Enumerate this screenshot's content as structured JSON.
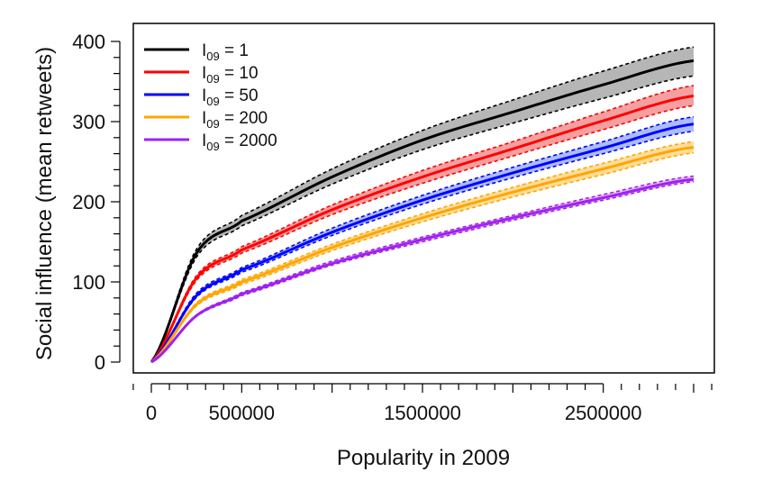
{
  "chart_data": {
    "type": "line",
    "title": "",
    "xlabel": "Popularity in 2009",
    "ylabel": "Social influence (mean retweets)",
    "xlim": [
      0,
      3000000
    ],
    "ylim": [
      0,
      400
    ],
    "x_ticks": [
      0,
      500000,
      1500000,
      2500000
    ],
    "x_tick_labels": [
      "0",
      "500000",
      "1500000",
      "2500000"
    ],
    "y_ticks": [
      0,
      100,
      200,
      300,
      400
    ],
    "y_tick_labels": [
      "0",
      "100",
      "200",
      "300",
      "400"
    ],
    "grid": false,
    "legend_position": "top-left",
    "x": [
      0,
      250000,
      500000,
      1000000,
      1500000,
      2000000,
      2500000,
      3000000
    ],
    "series": [
      {
        "name": "I09 = 1",
        "label_main": "I",
        "label_sub": "09",
        "label_rest": " = 1",
        "color": "#000000",
        "band_color": "#9e9e9e",
        "values": [
          0,
          136,
          176,
          231,
          277,
          312,
          346,
          376
        ],
        "lower": [
          0,
          131,
          170,
          222,
          265,
          298,
          329,
          357
        ],
        "upper": [
          0,
          141,
          183,
          241,
          289,
          327,
          363,
          393
        ]
      },
      {
        "name": "I09 = 10",
        "label_main": "I",
        "label_sub": "09",
        "label_rest": " = 10",
        "color": "#ff0000",
        "band_color": "#f08080",
        "values": [
          0,
          105,
          140,
          190,
          231,
          266,
          301,
          332
        ],
        "lower": [
          0,
          102,
          136,
          184,
          223,
          257,
          290,
          320
        ],
        "upper": [
          0,
          108,
          144,
          196,
          239,
          275,
          312,
          345
        ]
      },
      {
        "name": "I09 = 50",
        "label_main": "I",
        "label_sub": "09",
        "label_rest": " = 50",
        "color": "#0000ff",
        "band_color": "#8fa6ff",
        "values": [
          0,
          83,
          115,
          162,
          202,
          236,
          267,
          297
        ],
        "lower": [
          0,
          81,
          112,
          158,
          197,
          230,
          260,
          288
        ],
        "upper": [
          0,
          86,
          118,
          167,
          208,
          243,
          275,
          306
        ]
      },
      {
        "name": "I09 = 200",
        "label_main": "I",
        "label_sub": "09",
        "label_rest": " = 200",
        "color": "#ffa500",
        "band_color": "#ffd27a",
        "values": [
          0,
          72,
          100,
          143,
          180,
          212,
          241,
          268
        ],
        "lower": [
          0,
          70,
          97,
          139,
          175,
          206,
          234,
          261
        ],
        "upper": [
          0,
          74,
          103,
          147,
          185,
          218,
          248,
          275
        ]
      },
      {
        "name": "I09 = 2000",
        "label_main": "I",
        "label_sub": "09",
        "label_rest": " = 2000",
        "color": "#a020f0",
        "band_color": "#d9a6f5",
        "values": [
          0,
          58,
          85,
          123,
          153,
          180,
          205,
          228
        ],
        "lower": [
          0,
          57,
          83,
          121,
          150,
          177,
          202,
          225
        ],
        "upper": [
          0,
          59,
          87,
          126,
          156,
          183,
          209,
          232
        ]
      }
    ]
  }
}
